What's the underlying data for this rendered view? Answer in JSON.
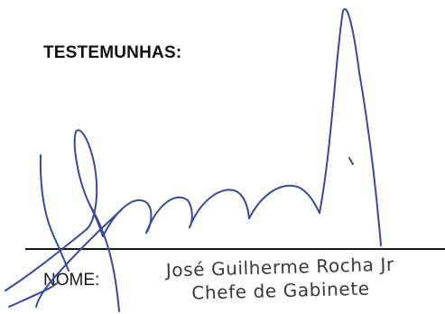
{
  "document": {
    "heading": "TESTEMUNHAS:",
    "name_label": "NOME:",
    "stamp": {
      "name": "José Guilherme Rocha Jr",
      "role": "Chefe de Gabinete"
    },
    "signature": {
      "ink_color": "#3a4a9a"
    }
  }
}
